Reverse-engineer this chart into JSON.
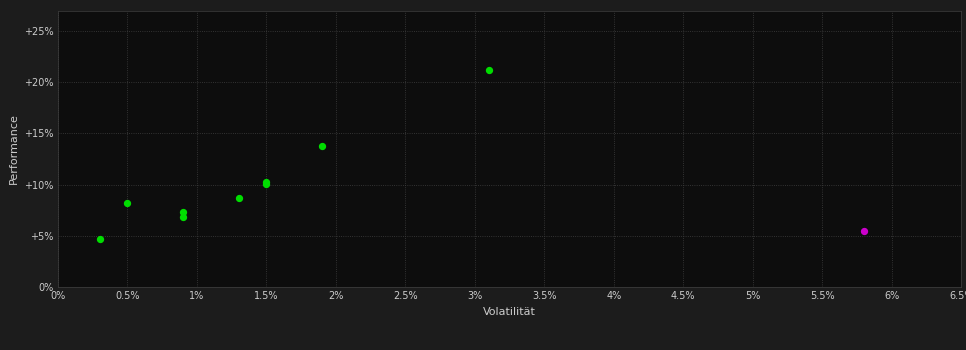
{
  "background_color": "#1c1c1c",
  "plot_bg_color": "#0d0d0d",
  "grid_color": "#404040",
  "text_color": "#cccccc",
  "xlabel": "Volatilität",
  "ylabel": "Performance",
  "xlim": [
    0.0,
    0.065
  ],
  "ylim": [
    0.0,
    0.27
  ],
  "xticks": [
    0.0,
    0.005,
    0.01,
    0.015,
    0.02,
    0.025,
    0.03,
    0.035,
    0.04,
    0.045,
    0.05,
    0.055,
    0.06,
    0.065
  ],
  "yticks": [
    0.0,
    0.05,
    0.1,
    0.15,
    0.2,
    0.25
  ],
  "green_points": [
    [
      0.003,
      0.047
    ],
    [
      0.005,
      0.082
    ],
    [
      0.009,
      0.073
    ],
    [
      0.009,
      0.068
    ],
    [
      0.013,
      0.087
    ],
    [
      0.015,
      0.101
    ],
    [
      0.015,
      0.103
    ],
    [
      0.019,
      0.138
    ],
    [
      0.031,
      0.212
    ]
  ],
  "magenta_points": [
    [
      0.058,
      0.055
    ]
  ],
  "green_color": "#00dd00",
  "magenta_color": "#cc00cc",
  "dot_size": 18,
  "xlabel_fontsize": 8,
  "ylabel_fontsize": 8,
  "tick_fontsize": 7
}
